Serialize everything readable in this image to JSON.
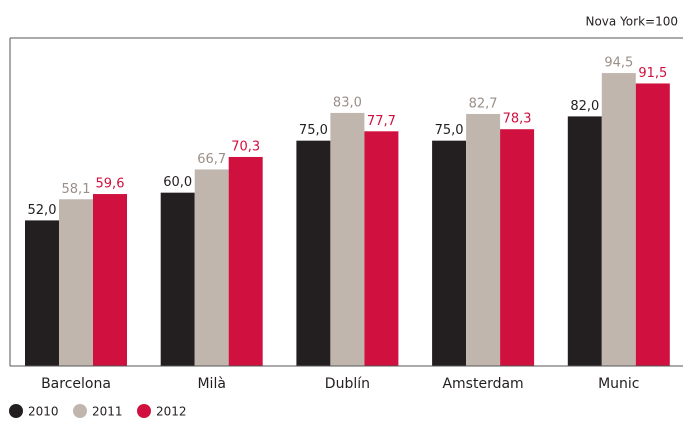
{
  "chart_data": {
    "type": "bar",
    "annotation": "Nova York=100",
    "categories": [
      "Barcelona",
      "Milà",
      "Dublín",
      "Amsterdam",
      "Munic"
    ],
    "series": [
      {
        "name": "2010",
        "color": "#231f20",
        "values": [
          52.0,
          60.0,
          75.0,
          75.0,
          82.0
        ],
        "value_labels": [
          "52,0",
          "60,0",
          "75,0",
          "75,0",
          "82,0"
        ]
      },
      {
        "name": "2011",
        "color": "#c1b6ae",
        "values": [
          58.1,
          66.7,
          83.0,
          82.7,
          94.5
        ],
        "value_labels": [
          "58,1",
          "66,7",
          "83,0",
          "82,7",
          "94,5"
        ]
      },
      {
        "name": "2012",
        "color": "#d0103f",
        "values": [
          59.6,
          70.3,
          77.7,
          78.3,
          91.5
        ],
        "value_labels": [
          "59,6",
          "70,3",
          "77,7",
          "78,3",
          "91,5"
        ]
      }
    ],
    "ylim": [
      10,
      100
    ],
    "legend": "bottom-left"
  }
}
